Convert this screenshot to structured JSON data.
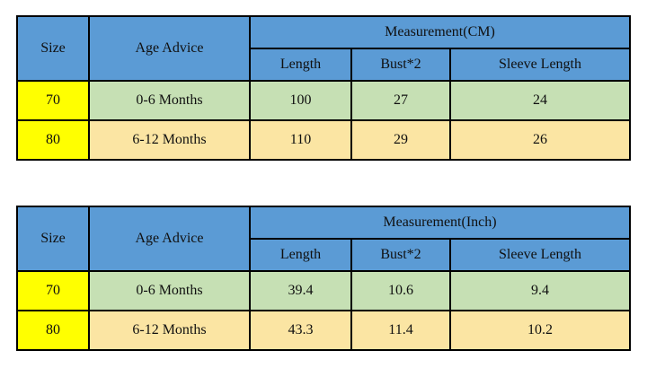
{
  "colors": {
    "header_blue": "#5b9bd5",
    "size_yellow": "#ffff00",
    "row1_green": "#c6e0b4",
    "row2_tan": "#fbe5a3",
    "border_black": "#000000"
  },
  "tables": [
    {
      "size_header": "Size",
      "age_header": "Age Advice",
      "measurement_header": "Measurement(CM)",
      "sub_headers": {
        "length": "Length",
        "bust": "Bust*2",
        "sleeve": "Sleeve Length"
      },
      "rows": [
        {
          "size": "70",
          "age": "0-6 Months",
          "length": "100",
          "bust": "27",
          "sleeve": "24"
        },
        {
          "size": "80",
          "age": "6-12 Months",
          "length": "110",
          "bust": "29",
          "sleeve": "26"
        }
      ]
    },
    {
      "size_header": "Size",
      "age_header": "Age Advice",
      "measurement_header": "Measurement(Inch)",
      "sub_headers": {
        "length": "Length",
        "bust": "Bust*2",
        "sleeve": "Sleeve Length"
      },
      "rows": [
        {
          "size": "70",
          "age": "0-6 Months",
          "length": "39.4",
          "bust": "10.6",
          "sleeve": "9.4"
        },
        {
          "size": "80",
          "age": "6-12 Months",
          "length": "43.3",
          "bust": "11.4",
          "sleeve": "10.2"
        }
      ]
    }
  ]
}
